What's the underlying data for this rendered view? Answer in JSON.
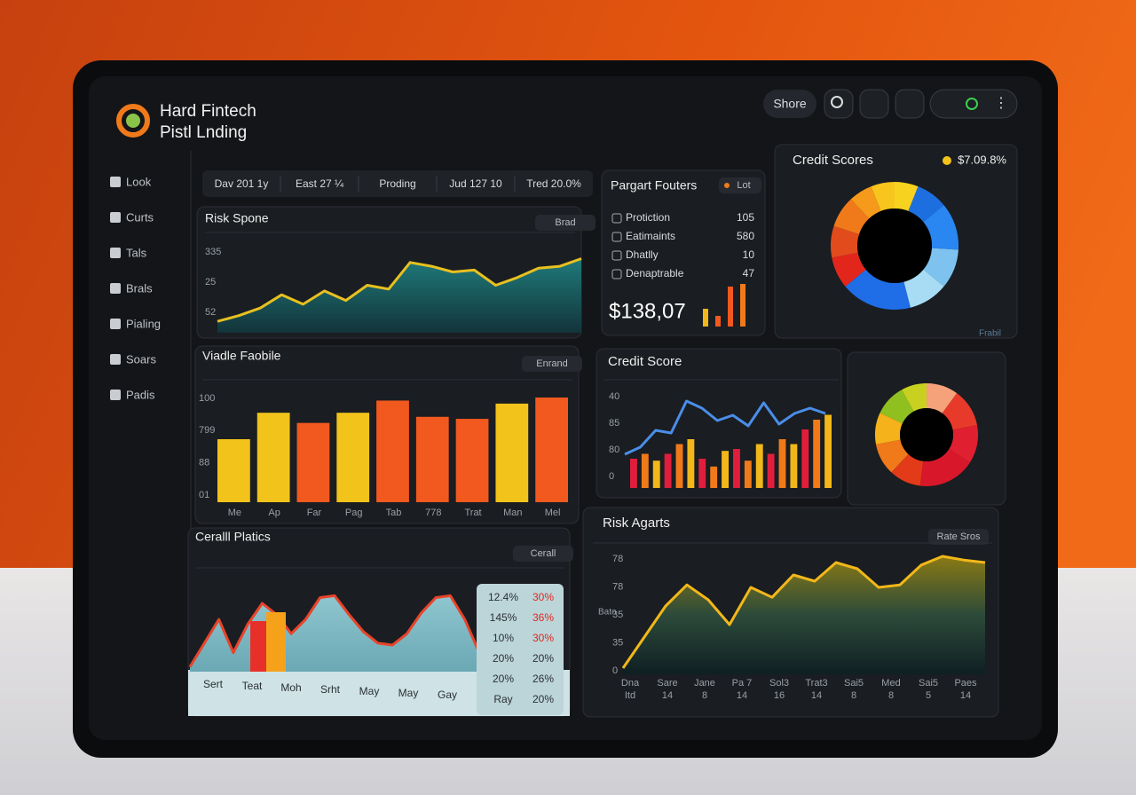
{
  "brand": {
    "name": "Hard Fintech",
    "subtitle": "Pistl Lnding"
  },
  "toolbar": {
    "button": "Shore"
  },
  "sidebar": [
    "Look",
    "Curts",
    "Tals",
    "Brals",
    "Pialing",
    "Soars",
    "Padis"
  ],
  "filters": [
    "Dav 201 1y",
    "East 27 ¼",
    "Proding",
    "Jud 127 10",
    "Tred 20.0%"
  ],
  "risk_spone": {
    "type": "area",
    "title": "Risk Spone",
    "badge": "Brad",
    "y_labels": [
      "335",
      "25",
      "52"
    ],
    "ylim": [
      0,
      100
    ],
    "color": "#e8c020",
    "values": [
      12,
      18,
      26,
      40,
      30,
      44,
      34,
      50,
      46,
      74,
      70,
      64,
      66,
      50,
      58,
      68,
      70,
      78
    ]
  },
  "value_profile": {
    "type": "bar",
    "title": "Viadle Faobile",
    "badge": "Enrand",
    "y_labels": [
      "100",
      "799",
      "88",
      "01"
    ],
    "ylim": [
      0,
      110
    ],
    "categories": [
      "Me",
      "Ap",
      "Far",
      "Pag",
      "Tab",
      "778",
      "Trat",
      "Man",
      "Mel"
    ],
    "values": [
      62,
      88,
      78,
      88,
      100,
      84,
      82,
      97,
      103
    ],
    "colors": [
      "#f2c31a",
      "#f2c31a",
      "#f2591e",
      "#f2c31a",
      "#f2591e",
      "#f2591e",
      "#f2591e",
      "#f2c31a",
      "#f2591e"
    ]
  },
  "payment_factors": {
    "title": "Pargart Fouters",
    "badge": "Lot",
    "rows": [
      {
        "label": "Protiction",
        "value": "105"
      },
      {
        "label": "Eatimaints",
        "value": "580"
      },
      {
        "label": "Dhatlly",
        "value": "10"
      },
      {
        "label": "Denaptrable",
        "value": "47"
      }
    ],
    "total": "$138,07"
  },
  "credit_scores": {
    "type": "donut",
    "title": "Credit Scores",
    "stat": "$7.09.8%",
    "footer": "Frabil",
    "values": [
      6,
      8,
      12,
      10,
      10,
      18,
      8,
      8,
      8,
      6,
      6
    ],
    "colors": [
      "#f7d21e",
      "#1d6fe0",
      "#2a86f0",
      "#7ec3f0",
      "#a8dcf5",
      "#1f6ee8",
      "#e3261c",
      "#e24b1c",
      "#f07a1a",
      "#f59a1a",
      "#f7c51e"
    ]
  },
  "credit_score": {
    "type": "bar-line",
    "title": "Credit Score",
    "y_labels": [
      "40",
      "85",
      "80",
      "0"
    ],
    "ylim": [
      0,
      100
    ],
    "line_color": "#4a8ee8",
    "line": [
      28,
      36,
      55,
      52,
      88,
      80,
      66,
      72,
      60,
      86,
      62,
      74,
      80,
      74
    ],
    "bars": [
      30,
      35,
      28,
      35,
      45,
      50,
      30,
      22,
      38,
      40,
      28,
      45,
      35,
      50,
      45,
      60,
      70,
      75
    ],
    "bar_colors": [
      "#e01e3c",
      "#f07a1a",
      "#f2b71a"
    ]
  },
  "score_mix": {
    "type": "donut",
    "values": [
      10,
      12,
      12,
      18,
      10,
      10,
      10,
      10,
      8
    ],
    "colors": [
      "#f5a27a",
      "#e83a2a",
      "#e02030",
      "#d8182a",
      "#e33a1a",
      "#f07a1a",
      "#f5b21a",
      "#90c020",
      "#c8d020"
    ]
  },
  "cerall": {
    "type": "area",
    "title": "Ceralll Platics",
    "badge": "Cerall",
    "ylim": [
      0,
      100
    ],
    "color": "#e8442a",
    "values": [
      5,
      30,
      55,
      20,
      50,
      72,
      60,
      40,
      55,
      78,
      80,
      60,
      42,
      30,
      28,
      40,
      62,
      78,
      80,
      55,
      20
    ],
    "x_labels": [
      "Sert",
      "Teat",
      "Moh",
      "Srht",
      "May",
      "May",
      "Gay"
    ],
    "table": [
      [
        "12.4%",
        "30%"
      ],
      [
        "145%",
        "36%"
      ],
      [
        "10%",
        "30%"
      ],
      [
        "20%",
        "20%"
      ],
      [
        "20%",
        "26%"
      ],
      [
        "Ray",
        "20%"
      ]
    ]
  },
  "risk_agarts": {
    "type": "area",
    "title": "Risk Agarts",
    "badge": "Rate Sros",
    "y_title": "Bato",
    "y_labels": [
      "78",
      "78",
      "35",
      "35",
      "0"
    ],
    "ylim": [
      0,
      100
    ],
    "color": "#f2b71a",
    "values": [
      5,
      30,
      55,
      72,
      60,
      40,
      70,
      62,
      80,
      75,
      90,
      85,
      70,
      72,
      88,
      95,
      92,
      90
    ],
    "x_labels": [
      [
        "Dna",
        "Itd"
      ],
      [
        "Sare",
        "14"
      ],
      [
        "Jane",
        "8"
      ],
      [
        "Pa 7",
        "14"
      ],
      [
        "Sol3",
        "16"
      ],
      [
        "Trat3",
        "14"
      ],
      [
        "Sai5",
        "8"
      ],
      [
        "Med",
        "8"
      ],
      [
        "Sai5",
        "5"
      ],
      [
        "Paes",
        "14"
      ]
    ]
  }
}
